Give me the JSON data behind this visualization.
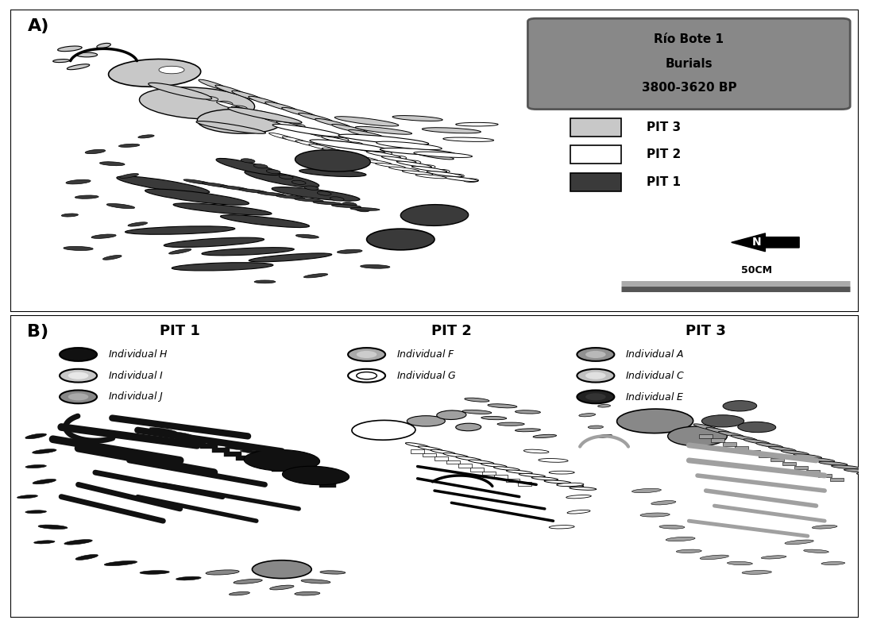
{
  "panel_a_label": "A)",
  "panel_b_label": "B)",
  "title_box_text_line1": "Río Bote 1",
  "title_box_text_line2": "Burials",
  "title_box_text_line3": "3800-3620 BP",
  "title_box_bg": "#888888",
  "title_box_text_color": "#000000",
  "pit3_color": "#c8c8c8",
  "pit2_color": "#ffffff",
  "pit1_color": "#3a3a3a",
  "pit3_color_b": "#a0a0a0",
  "pit1_color_b": "#151515",
  "legend_labels": [
    "PIT 3",
    "PIT 2",
    "PIT 1"
  ],
  "pit1_title": "PIT 1",
  "pit2_title": "PIT 2",
  "pit3_title": "PIT 3",
  "scalebar_label": "50CM",
  "north_label": "N",
  "bg_color": "#ffffff",
  "border_color": "#000000"
}
